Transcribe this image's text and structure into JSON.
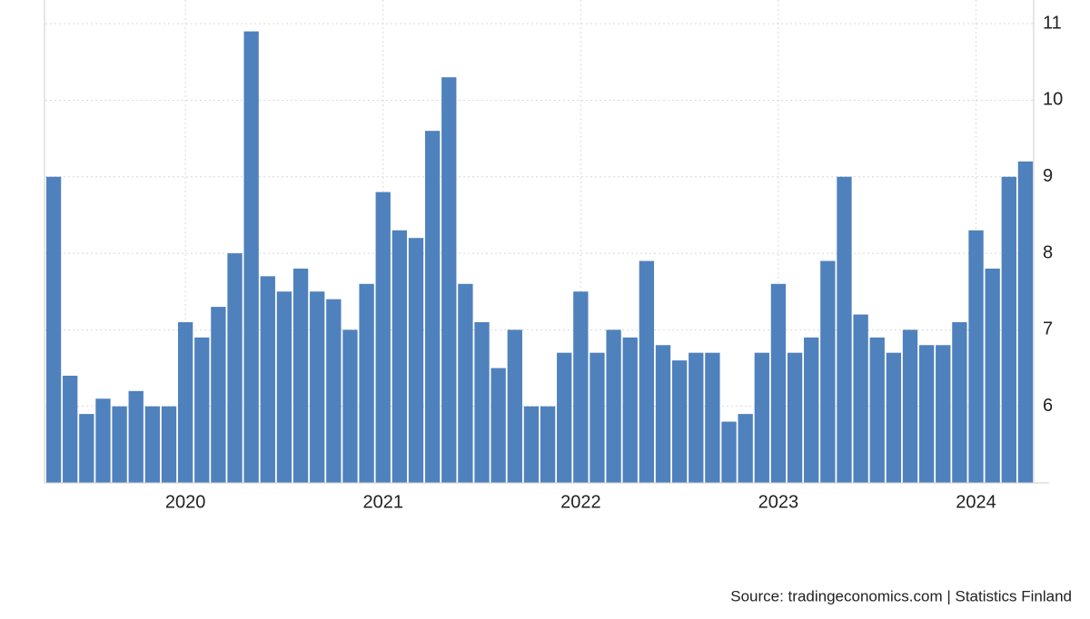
{
  "chart_data": {
    "type": "bar",
    "categories": [
      null,
      null,
      null,
      null,
      null,
      null,
      null,
      null,
      "2020",
      null,
      null,
      null,
      null,
      null,
      null,
      null,
      null,
      null,
      null,
      null,
      "2021",
      null,
      null,
      null,
      null,
      null,
      null,
      null,
      null,
      null,
      null,
      null,
      "2022",
      null,
      null,
      null,
      null,
      null,
      null,
      null,
      null,
      null,
      null,
      null,
      "2023",
      null,
      null,
      null,
      null,
      null,
      null,
      null,
      null,
      null,
      null,
      null,
      "2024",
      null,
      null,
      null
    ],
    "values": [
      9.0,
      6.4,
      5.9,
      6.1,
      6.0,
      6.2,
      6.0,
      6.0,
      7.1,
      6.9,
      7.3,
      8.0,
      10.9,
      7.7,
      7.5,
      7.8,
      7.5,
      7.4,
      7.0,
      7.6,
      8.8,
      8.3,
      8.2,
      9.6,
      10.3,
      7.6,
      7.1,
      6.5,
      7.0,
      6.0,
      6.0,
      6.7,
      7.5,
      6.7,
      7.0,
      6.9,
      7.9,
      6.8,
      6.6,
      6.7,
      6.7,
      5.8,
      5.9,
      6.7,
      7.6,
      6.7,
      6.9,
      7.9,
      9.0,
      7.2,
      6.9,
      6.7,
      7.0,
      6.8,
      6.8,
      7.1,
      8.3,
      7.8,
      9.0,
      9.2
    ],
    "color": "#4f81bd",
    "ylim": [
      5,
      11.31
    ],
    "yticks": [
      6,
      7,
      8,
      9,
      10,
      11
    ],
    "grid": true,
    "source": "Source: tradingeconomics.com | Statistics Finland"
  }
}
